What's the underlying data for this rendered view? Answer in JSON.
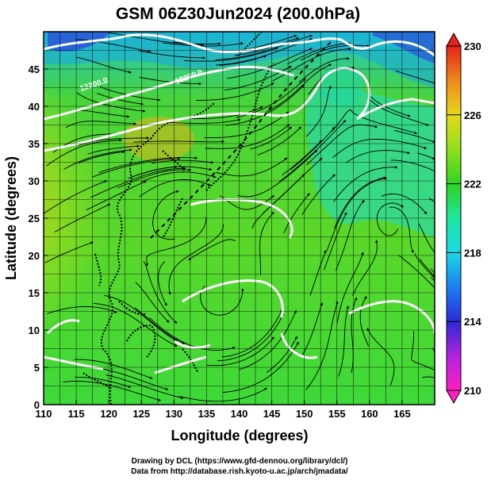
{
  "title": "GSM 06Z30Jun2024 (200.0hPa)",
  "xlabel": "Longitude (degrees)",
  "ylabel": "Latitude  (degrees)",
  "credits": [
    "Drawing by DCL (https://www.gfd-dennou.org/library/dcl/)",
    "Data from http://database.rish.kyoto-u.ac.jp/arch/jmadata/"
  ],
  "chart_data": {
    "type": "heatmap",
    "title": "GSM 06Z30Jun2024 (200.0hPa)",
    "xlabel": "Longitude (degrees)",
    "ylabel": "Latitude  (degrees)",
    "xlim": [
      110,
      170
    ],
    "ylim": [
      0,
      50
    ],
    "x_ticks": [
      110,
      115,
      120,
      125,
      130,
      135,
      140,
      145,
      150,
      155,
      160,
      165
    ],
    "y_ticks": [
      0,
      5,
      10,
      15,
      20,
      25,
      30,
      35,
      40,
      45
    ],
    "grid": true,
    "colorbar": {
      "range": [
        210,
        230
      ],
      "ticks": [
        210,
        214,
        218,
        222,
        226,
        230
      ],
      "stops": [
        {
          "value": 210,
          "color": "#ff1fbf"
        },
        {
          "value": 212,
          "color": "#b422e0"
        },
        {
          "value": 214,
          "color": "#2a2ad8"
        },
        {
          "value": 216,
          "color": "#1c7ff2"
        },
        {
          "value": 218,
          "color": "#19d8e6"
        },
        {
          "value": 220,
          "color": "#1ee6a0"
        },
        {
          "value": 222,
          "color": "#2ed41e"
        },
        {
          "value": 224,
          "color": "#8fe01c"
        },
        {
          "value": 226,
          "color": "#e6d81a"
        },
        {
          "value": 228,
          "color": "#f08a1a"
        },
        {
          "value": 230,
          "color": "#e8201a"
        }
      ]
    },
    "contour_labels": [
      "12200.0",
      "12200.0"
    ],
    "field_description": "200 hPa field with streamlines over western Pacific and East Asia"
  }
}
